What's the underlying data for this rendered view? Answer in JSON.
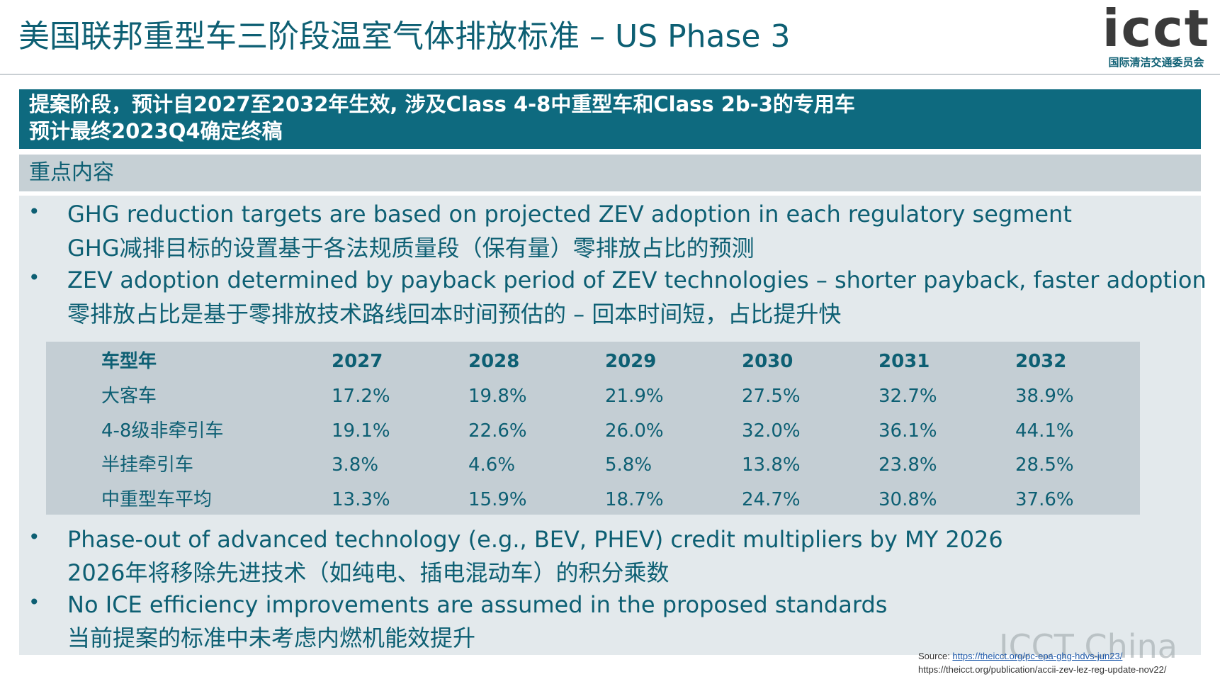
{
  "title": "美国联邦重型车三阶段温室气体排放标准 – US Phase 3",
  "logo": {
    "word": "icct",
    "subtitle": "国际清洁交通委员会"
  },
  "header": {
    "line1": "提案阶段，预计自2027至2032年生效, 涉及Class 4-8中重型车和Class 2b-3的专用车",
    "line2": "预计最终2023Q4确定终稿"
  },
  "section_label": "重点内容",
  "bullets_top": [
    {
      "en": "GHG reduction targets are based on projected ZEV adoption in each regulatory segment",
      "zh": "GHG减排目标的设置基于各法规质量段（保有量）零排放占比的预测"
    },
    {
      "en": "ZEV adoption determined by payback period of ZEV technologies – shorter payback, faster adoption",
      "zh": "零排放占比是基于零排放技术路线回本时间预估的 – 回本时间短，占比提升快"
    }
  ],
  "table": {
    "header": [
      "车型年",
      "2027",
      "2028",
      "2029",
      "2030",
      "2031",
      "2032"
    ],
    "rows": [
      [
        "大客车",
        "17.2%",
        "19.8%",
        "21.9%",
        "27.5%",
        "32.7%",
        "38.9%"
      ],
      [
        "4-8级非牵引车",
        "19.1%",
        "22.6%",
        "26.0%",
        "32.0%",
        "36.1%",
        "44.1%"
      ],
      [
        "半挂牵引车",
        "3.8%",
        "4.6%",
        "5.8%",
        "13.8%",
        "23.8%",
        "28.5%"
      ],
      [
        "中重型车平均",
        "13.3%",
        "15.9%",
        "18.7%",
        "24.7%",
        "30.8%",
        "37.6%"
      ]
    ]
  },
  "bullets_bottom": [
    {
      "en": "Phase-out of advanced technology (e.g., BEV, PHEV) credit multipliers by MY 2026",
      "zh": "2026年将移除先进技术（如纯电、插电混动车）的积分乘数"
    },
    {
      "en": "No ICE efficiency improvements are assumed in the proposed standards",
      "zh": "当前提案的标准中未考虑内燃机能效提升"
    }
  ],
  "watermark": "ICCT China",
  "source": {
    "label": "Source: ",
    "link1": "https://theicct.org/pc-epa-ghg-hdvs-jun23/",
    "link2": "https://theicct.org/publication/accii-zev-lez-reg-update-nov22/"
  },
  "colors": {
    "brand": "#0e6a7f",
    "text": "#0d5f73",
    "panel": "#e3e9ec",
    "table": "#c4ced4"
  }
}
